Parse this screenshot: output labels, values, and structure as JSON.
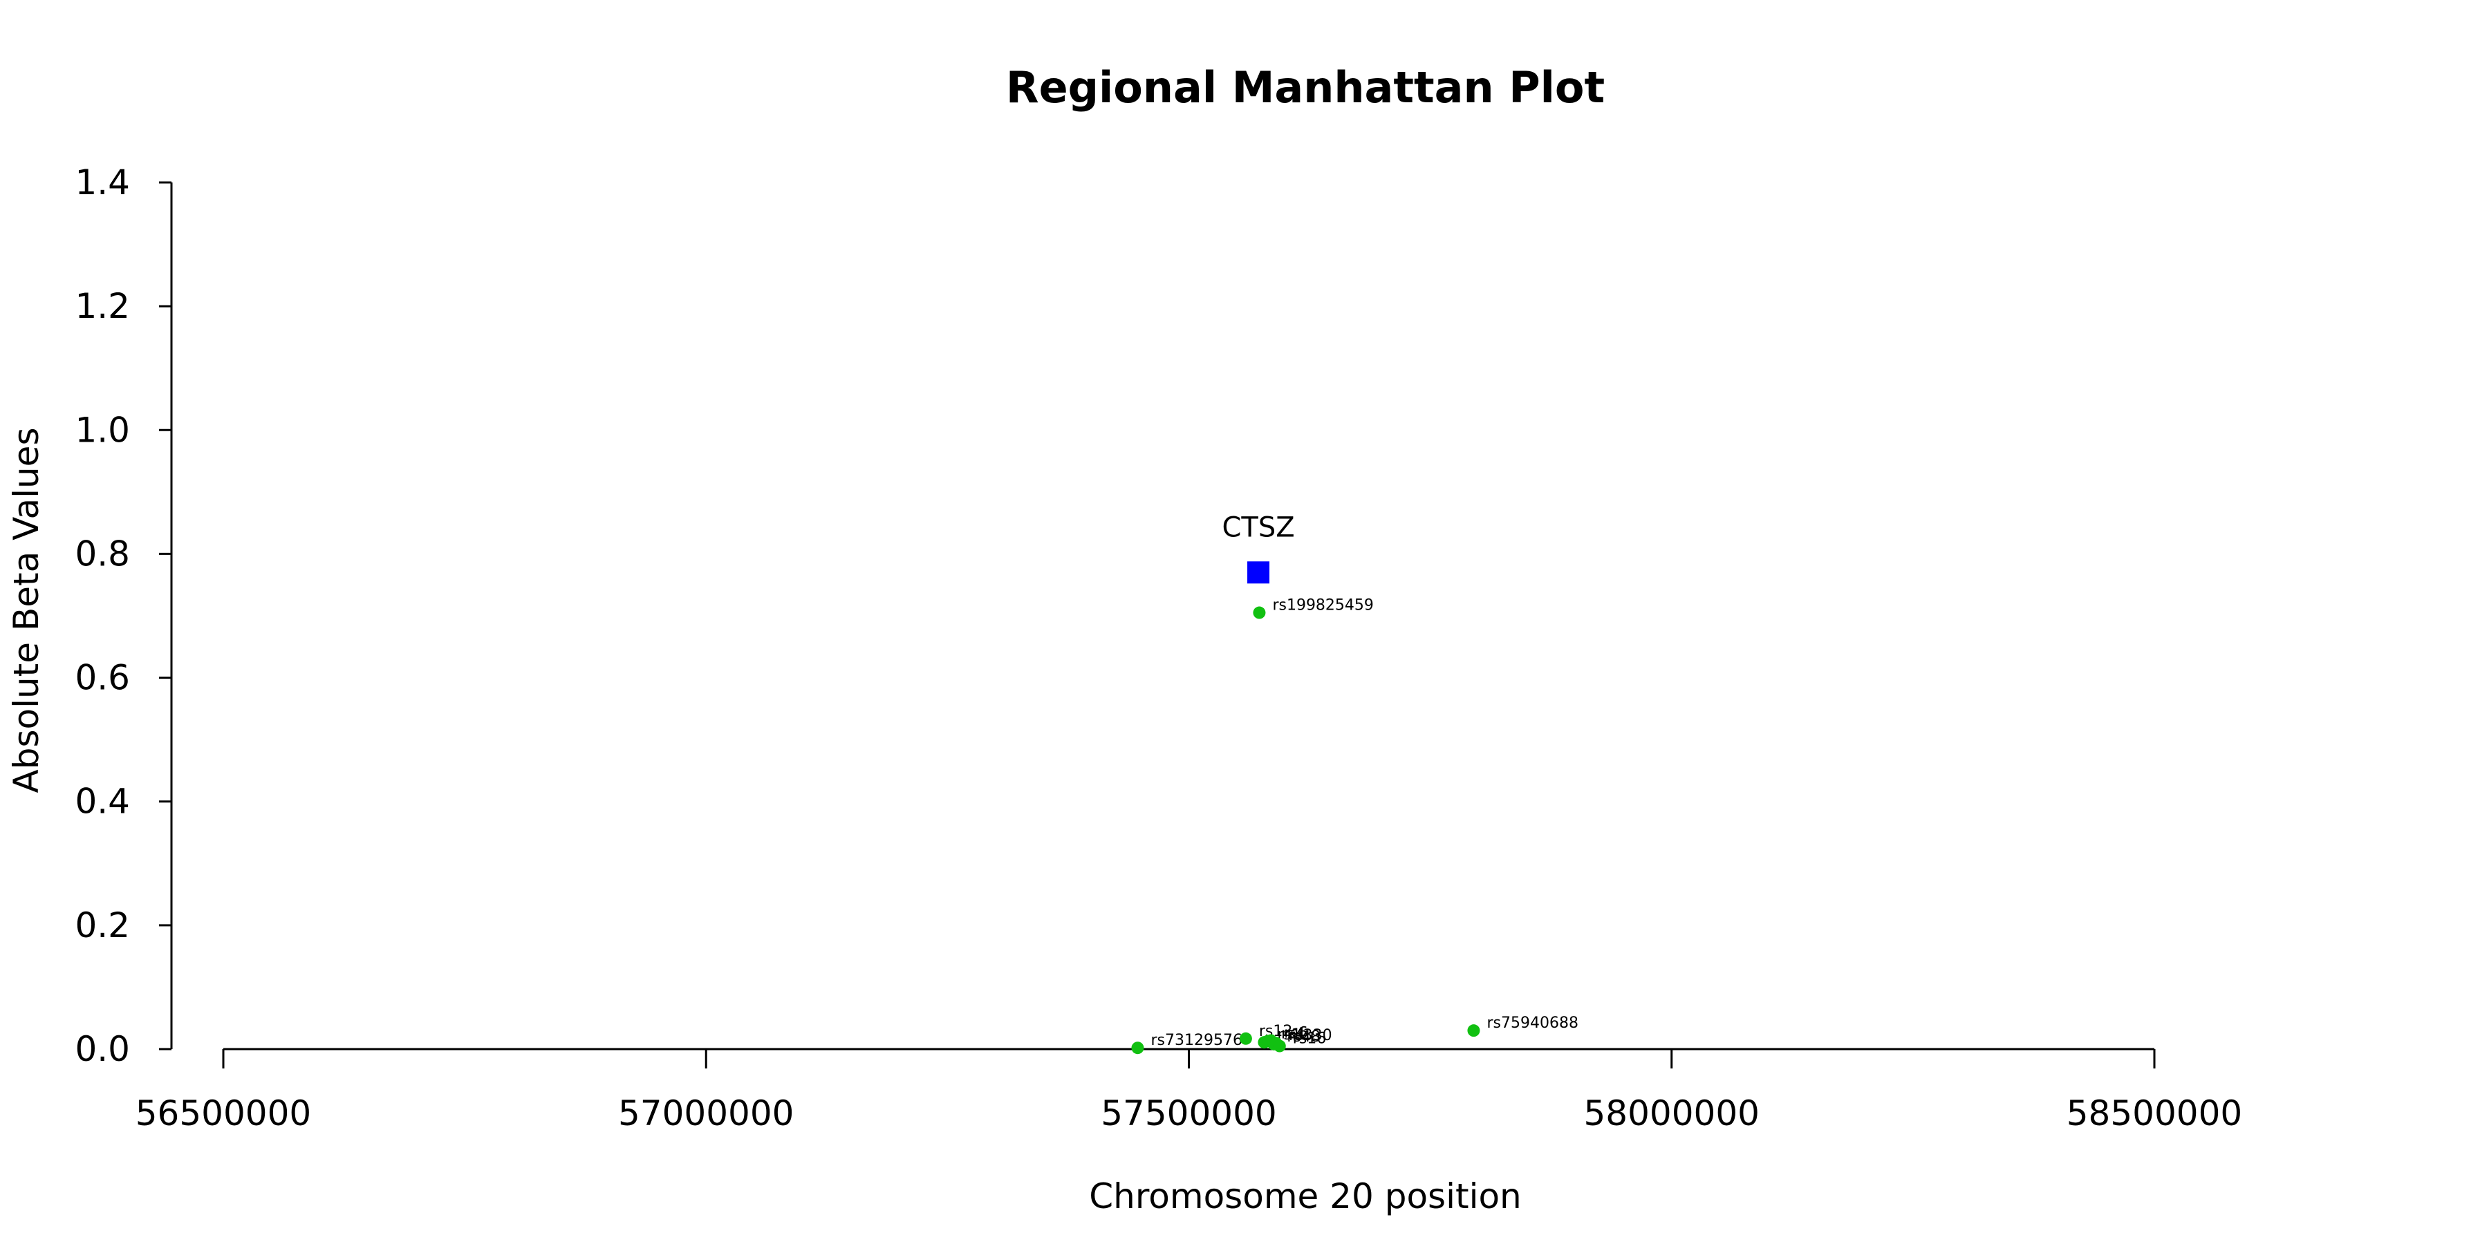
{
  "chart_data": {
    "type": "scatter",
    "title": "Regional Manhattan Plot",
    "xlabel": "Chromosome 20 position",
    "ylabel": "Absolute Beta Values",
    "xlim": [
      56500000,
      58500000
    ],
    "ylim": [
      0,
      1.4
    ],
    "x_ticks": [
      56500000,
      57000000,
      57500000,
      58000000,
      58500000
    ],
    "x_tick_labels": [
      "56500000",
      "57000000",
      "57500000",
      "58000000",
      "58500000"
    ],
    "y_ticks": [
      0,
      0.2,
      0.4,
      0.6,
      0.8,
      1.0,
      1.2,
      1.4
    ],
    "y_tick_labels": [
      "0.0",
      "0.2",
      "0.4",
      "0.6",
      "0.8",
      "1.0",
      "1.2",
      "1.4"
    ],
    "grid": false,
    "gene": {
      "name": "CTSZ",
      "x": 57572000,
      "y": 0.77,
      "color": "#0000ff",
      "marker": "square"
    },
    "snp_color": "#11c011",
    "snps": [
      {
        "id": "rs199825459",
        "x": 57573000,
        "y": 0.705
      },
      {
        "id": "rs73129576",
        "x": 57447000,
        "y": 0.002
      },
      {
        "id": "rs12",
        "x": 57559000,
        "y": 0.017
      },
      {
        "id": "rs1",
        "x": 57578000,
        "y": 0.011
      },
      {
        "id": "rs4",
        "x": 57582000,
        "y": 0.013
      },
      {
        "id": "rs6",
        "x": 57585000,
        "y": 0.014
      },
      {
        "id": "rs330",
        "x": 57590000,
        "y": 0.01
      },
      {
        "id": "rs48",
        "x": 57588000,
        "y": 0.008
      },
      {
        "id": "rs16",
        "x": 57594000,
        "y": 0.005
      },
      {
        "id": "rs75940688",
        "x": 57795000,
        "y": 0.03
      }
    ]
  }
}
